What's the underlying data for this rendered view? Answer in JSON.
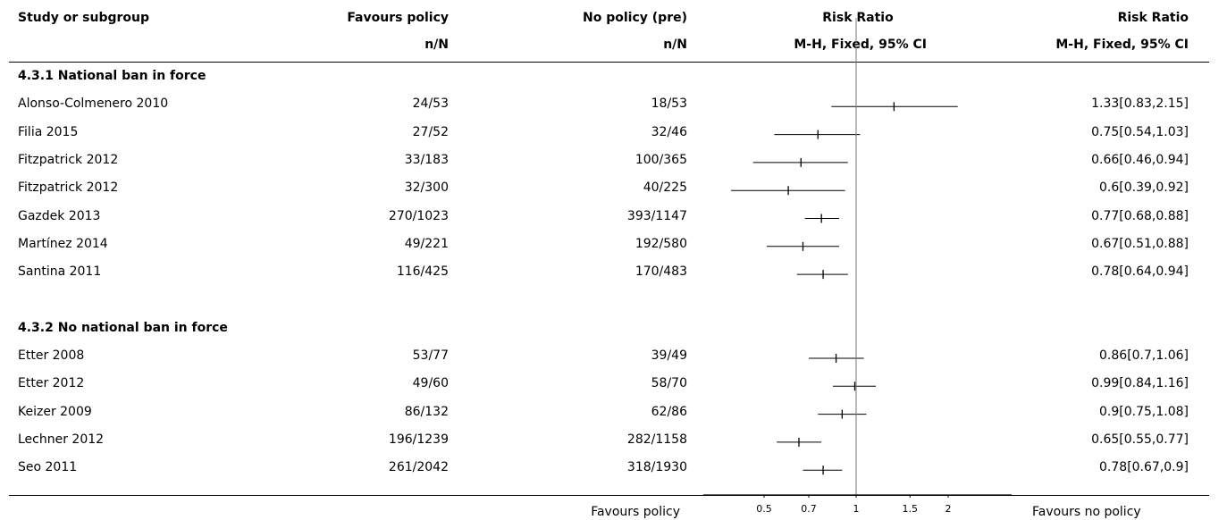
{
  "headers": {
    "study": "Study or subgroup",
    "favours_policy": "Favours policy",
    "favours_policy_sub": "n/N",
    "no_policy": "No policy (pre)",
    "no_policy_sub": "n/N",
    "rr_plot": "Risk Ratio",
    "rr_plot_sub": "M-H, Fixed, 95% CI",
    "rr_text": "Risk Ratio",
    "rr_text_sub": "M-H, Fixed, 95% CI"
  },
  "footer": {
    "left": "Favours policy",
    "right": "Favours no policy"
  },
  "chart_data": {
    "type": "forest",
    "scale": "log",
    "xlim": [
      0.45,
      2.2
    ],
    "ticks": [
      0.5,
      0.7,
      1,
      1.5,
      2
    ],
    "tick_labels": [
      "0.5",
      "0.7",
      "1",
      "1.5",
      "2"
    ],
    "reference_line": 1,
    "subgroups": [
      {
        "title": "4.3.1 National ban in force",
        "studies": [
          {
            "name": "Alonso-Colmenero 2010",
            "policy": "24/53",
            "control": "18/53",
            "rr": 1.33,
            "lo": 0.83,
            "hi": 2.15,
            "label": "1.33[0.83,2.15]"
          },
          {
            "name": "Filia 2015",
            "policy": "27/52",
            "control": "32/46",
            "rr": 0.75,
            "lo": 0.54,
            "hi": 1.03,
            "label": "0.75[0.54,1.03]"
          },
          {
            "name": "Fitzpatrick 2012",
            "policy": "33/183",
            "control": "100/365",
            "rr": 0.66,
            "lo": 0.46,
            "hi": 0.94,
            "label": "0.66[0.46,0.94]"
          },
          {
            "name": "Fitzpatrick 2012",
            "policy": "32/300",
            "control": "40/225",
            "rr": 0.6,
            "lo": 0.39,
            "hi": 0.92,
            "label": "0.6[0.39,0.92]"
          },
          {
            "name": "Gazdek 2013",
            "policy": "270/1023",
            "control": "393/1147",
            "rr": 0.77,
            "lo": 0.68,
            "hi": 0.88,
            "label": "0.77[0.68,0.88]"
          },
          {
            "name": "Martínez 2014",
            "policy": "49/221",
            "control": "192/580",
            "rr": 0.67,
            "lo": 0.51,
            "hi": 0.88,
            "label": "0.67[0.51,0.88]"
          },
          {
            "name": "Santina 2011",
            "policy": "116/425",
            "control": "170/483",
            "rr": 0.78,
            "lo": 0.64,
            "hi": 0.94,
            "label": "0.78[0.64,0.94]"
          }
        ]
      },
      {
        "title": "4.3.2 No national ban in force",
        "studies": [
          {
            "name": "Etter 2008",
            "policy": "53/77",
            "control": "39/49",
            "rr": 0.86,
            "lo": 0.7,
            "hi": 1.06,
            "label": "0.86[0.7,1.06]"
          },
          {
            "name": "Etter 2012",
            "policy": "49/60",
            "control": "58/70",
            "rr": 0.99,
            "lo": 0.84,
            "hi": 1.16,
            "label": "0.99[0.84,1.16]"
          },
          {
            "name": "Keizer 2009",
            "policy": "86/132",
            "control": "62/86",
            "rr": 0.9,
            "lo": 0.75,
            "hi": 1.08,
            "label": "0.9[0.75,1.08]"
          },
          {
            "name": "Lechner 2012",
            "policy": "196/1239",
            "control": "282/1158",
            "rr": 0.65,
            "lo": 0.55,
            "hi": 0.77,
            "label": "0.65[0.55,0.77]"
          },
          {
            "name": "Seo 2011",
            "policy": "261/2042",
            "control": "318/1930",
            "rr": 0.78,
            "lo": 0.67,
            "hi": 0.9,
            "label": "0.78[0.67,0.9]"
          }
        ]
      }
    ]
  }
}
